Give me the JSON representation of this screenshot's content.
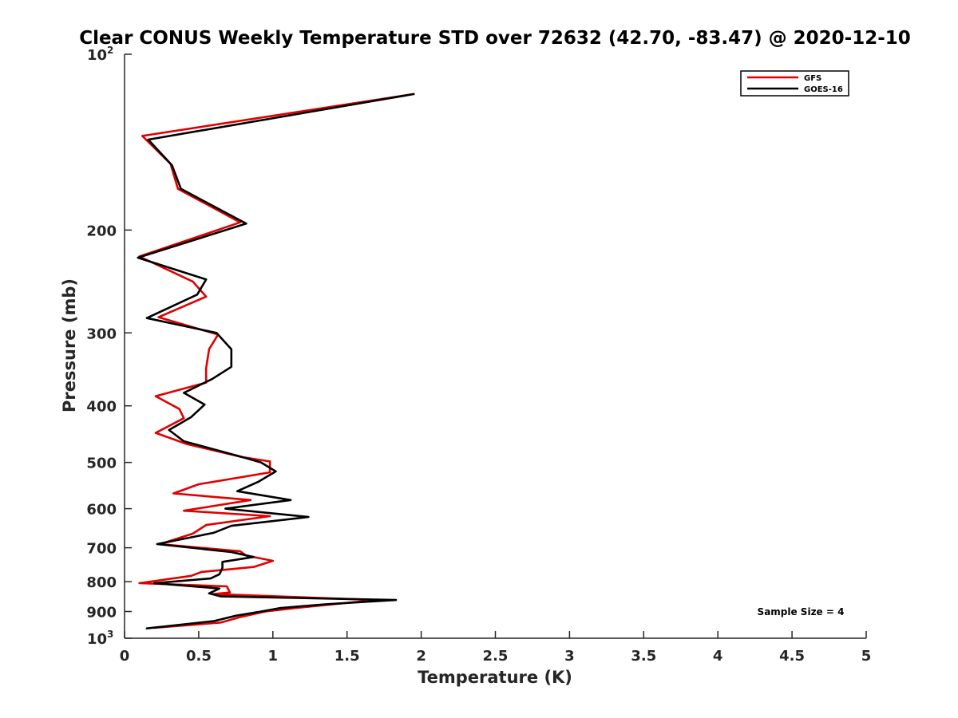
{
  "chart_data": {
    "type": "line",
    "title": "Clear CONUS Weekly Temperature STD over 72632 (42.70, -83.47) @ 2020-12-10",
    "xlabel": "Temperature (K)",
    "ylabel": "Pressure (mb)",
    "xlim": [
      0,
      5
    ],
    "ylim": [
      100,
      1000
    ],
    "y_scale": "log",
    "y_reversed": true,
    "grid": false,
    "legend_position": "top-right",
    "x_ticks": [
      0,
      0.5,
      1,
      1.5,
      2,
      2.5,
      3,
      3.5,
      4,
      4.5,
      5
    ],
    "x_tick_labels": [
      "0",
      "0.5",
      "1",
      "1.5",
      "2",
      "2.5",
      "3",
      "3.5",
      "4",
      "4.5",
      "5"
    ],
    "y_ticks": [
      100,
      200,
      300,
      400,
      500,
      600,
      700,
      800,
      900,
      1000
    ],
    "y_tick_labels": [
      {
        "base": "10",
        "exp": "2"
      },
      "200",
      "300",
      "400",
      "500",
      "600",
      "700",
      "800",
      "900",
      {
        "base": "10",
        "exp": "3"
      }
    ],
    "annotation": "Sample Size = 4",
    "series": [
      {
        "name": "GFS",
        "color": "#e00000",
        "points": [
          [
            1.95,
            117
          ],
          [
            0.12,
            138
          ],
          [
            0.31,
            154
          ],
          [
            0.36,
            170
          ],
          [
            0.78,
            194
          ],
          [
            0.1,
            222
          ],
          [
            0.46,
            245
          ],
          [
            0.55,
            260
          ],
          [
            0.23,
            282
          ],
          [
            0.63,
            302
          ],
          [
            0.57,
            320
          ],
          [
            0.55,
            345
          ],
          [
            0.55,
            365
          ],
          [
            0.21,
            385
          ],
          [
            0.37,
            405
          ],
          [
            0.4,
            420
          ],
          [
            0.21,
            445
          ],
          [
            0.42,
            465
          ],
          [
            0.8,
            490
          ],
          [
            0.98,
            498
          ],
          [
            0.98,
            520
          ],
          [
            0.5,
            545
          ],
          [
            0.33,
            565
          ],
          [
            0.85,
            580
          ],
          [
            0.4,
            605
          ],
          [
            0.98,
            618
          ],
          [
            0.55,
            640
          ],
          [
            0.46,
            662
          ],
          [
            0.24,
            690
          ],
          [
            0.78,
            710
          ],
          [
            0.82,
            722
          ],
          [
            1.0,
            737
          ],
          [
            0.87,
            755
          ],
          [
            0.52,
            770
          ],
          [
            0.45,
            782
          ],
          [
            0.1,
            805
          ],
          [
            0.69,
            815
          ],
          [
            0.71,
            835
          ],
          [
            0.6,
            840
          ],
          [
            1.7,
            860
          ],
          [
            1.5,
            870
          ],
          [
            1.15,
            888
          ],
          [
            0.95,
            900
          ],
          [
            0.78,
            920
          ],
          [
            0.65,
            940
          ],
          [
            0.2,
            960
          ]
        ]
      },
      {
        "name": "GOES-16",
        "color": "#000000",
        "points": [
          [
            1.95,
            117
          ],
          [
            0.16,
            140
          ],
          [
            0.32,
            155
          ],
          [
            0.38,
            170
          ],
          [
            0.82,
            195
          ],
          [
            0.09,
            223
          ],
          [
            0.55,
            243
          ],
          [
            0.49,
            258
          ],
          [
            0.15,
            283
          ],
          [
            0.62,
            300
          ],
          [
            0.72,
            320
          ],
          [
            0.72,
            343
          ],
          [
            0.59,
            360
          ],
          [
            0.4,
            380
          ],
          [
            0.54,
            398
          ],
          [
            0.45,
            418
          ],
          [
            0.3,
            440
          ],
          [
            0.4,
            460
          ],
          [
            0.8,
            490
          ],
          [
            0.92,
            500
          ],
          [
            1.02,
            518
          ],
          [
            0.9,
            540
          ],
          [
            0.76,
            560
          ],
          [
            1.12,
            580
          ],
          [
            0.68,
            600
          ],
          [
            1.24,
            620
          ],
          [
            0.72,
            642
          ],
          [
            0.6,
            660
          ],
          [
            0.22,
            690
          ],
          [
            0.72,
            712
          ],
          [
            0.87,
            726
          ],
          [
            0.66,
            740
          ],
          [
            0.66,
            758
          ],
          [
            0.64,
            777
          ],
          [
            0.58,
            790
          ],
          [
            0.2,
            805
          ],
          [
            0.64,
            822
          ],
          [
            0.57,
            838
          ],
          [
            0.65,
            848
          ],
          [
            1.83,
            860
          ],
          [
            1.35,
            875
          ],
          [
            1.05,
            888
          ],
          [
            0.92,
            900
          ],
          [
            0.75,
            915
          ],
          [
            0.6,
            935
          ],
          [
            0.15,
            962
          ]
        ]
      }
    ]
  }
}
